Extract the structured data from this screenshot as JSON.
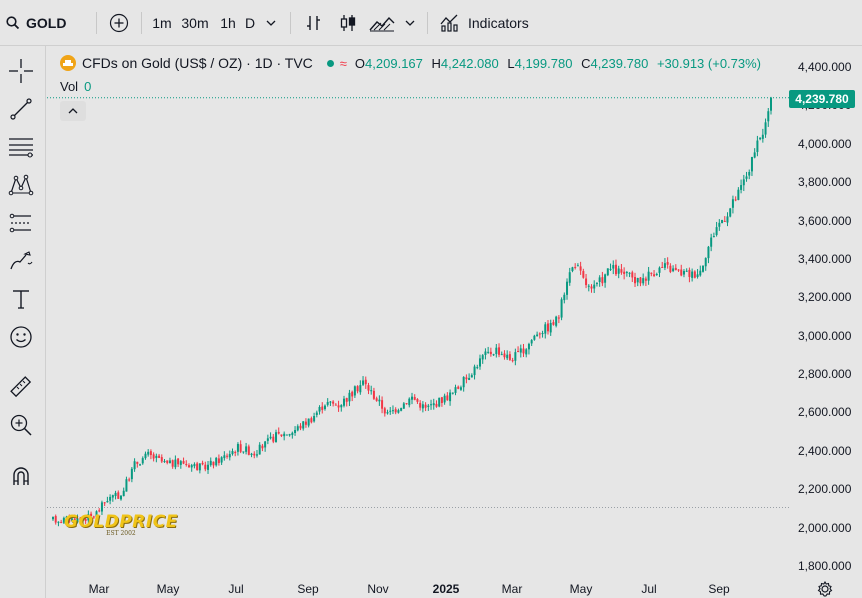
{
  "topbar": {
    "symbol": "GOLD",
    "intervals": [
      "1m",
      "30m",
      "1h",
      "D"
    ],
    "indicators_label": "Indicators"
  },
  "legend": {
    "title": "CFDs on Gold (US$ / OZ) · 1D · TVC",
    "open_key": "O",
    "open": "4,209.167",
    "high_key": "H",
    "high": "4,242.080",
    "low_key": "L",
    "low": "4,199.780",
    "close_key": "C",
    "close": "4,239.780",
    "change": "+30.913 (+0.73%)",
    "vol_label": "Vol",
    "vol_value": "0"
  },
  "price_badge": "4,239.780",
  "watermark": {
    "text": "GOLDPRICE",
    "sub": "EST 2002"
  },
  "colors": {
    "up": "#089981",
    "down": "#f23645",
    "badge": "#089981",
    "bg": "#e6e6e6"
  },
  "chart_data": {
    "type": "candlestick",
    "title": "CFDs on Gold (US$ / OZ) · 1D · TVC",
    "y_axis_ticks": [
      "4,400.000",
      "4,200.000",
      "4,000.000",
      "3,800.000",
      "3,600.000",
      "3,400.000",
      "3,200.000",
      "3,000.000",
      "2,800.000",
      "2,600.000",
      "2,400.000",
      "2,200.000",
      "2,000.000",
      "1,800.000"
    ],
    "y_axis_values": [
      4400,
      4200,
      4000,
      3800,
      3600,
      3400,
      3200,
      3000,
      2800,
      2600,
      2400,
      2200,
      2000,
      1800
    ],
    "ylim": [
      1750,
      4460
    ],
    "x_axis_ticks": [
      "Mar",
      "May",
      "Jul",
      "Sep",
      "Nov",
      "2025",
      "Mar",
      "May",
      "Jul",
      "Sep"
    ],
    "x_axis_bold": [
      false,
      false,
      false,
      false,
      false,
      true,
      false,
      false,
      false,
      false
    ],
    "reference_line": 2105,
    "last_price": 4239.78,
    "anchors": [
      [
        0,
        2040
      ],
      [
        10,
        2045
      ],
      [
        15,
        2060
      ],
      [
        20,
        2150
      ],
      [
        25,
        2170
      ],
      [
        30,
        2330
      ],
      [
        35,
        2380
      ],
      [
        42,
        2330
      ],
      [
        48,
        2340
      ],
      [
        55,
        2310
      ],
      [
        62,
        2360
      ],
      [
        68,
        2420
      ],
      [
        74,
        2390
      ],
      [
        82,
        2480
      ],
      [
        88,
        2500
      ],
      [
        95,
        2570
      ],
      [
        100,
        2650
      ],
      [
        105,
        2640
      ],
      [
        110,
        2700
      ],
      [
        114,
        2760
      ],
      [
        119,
        2670
      ],
      [
        123,
        2590
      ],
      [
        128,
        2640
      ],
      [
        132,
        2680
      ],
      [
        137,
        2620
      ],
      [
        142,
        2660
      ],
      [
        147,
        2700
      ],
      [
        152,
        2780
      ],
      [
        158,
        2890
      ],
      [
        163,
        2930
      ],
      [
        168,
        2880
      ],
      [
        173,
        2920
      ],
      [
        178,
        3020
      ],
      [
        183,
        3050
      ],
      [
        186,
        3100
      ],
      [
        189,
        3300
      ],
      [
        192,
        3380
      ],
      [
        195,
        3290
      ],
      [
        198,
        3230
      ],
      [
        201,
        3280
      ],
      [
        205,
        3350
      ],
      [
        210,
        3320
      ],
      [
        215,
        3280
      ],
      [
        220,
        3330
      ],
      [
        225,
        3360
      ],
      [
        230,
        3330
      ],
      [
        235,
        3320
      ],
      [
        238,
        3340
      ],
      [
        240,
        3430
      ],
      [
        244,
        3570
      ],
      [
        248,
        3640
      ],
      [
        252,
        3740
      ],
      [
        256,
        3870
      ],
      [
        259,
        3990
      ],
      [
        262,
        4100
      ],
      [
        264,
        4240
      ]
    ]
  }
}
